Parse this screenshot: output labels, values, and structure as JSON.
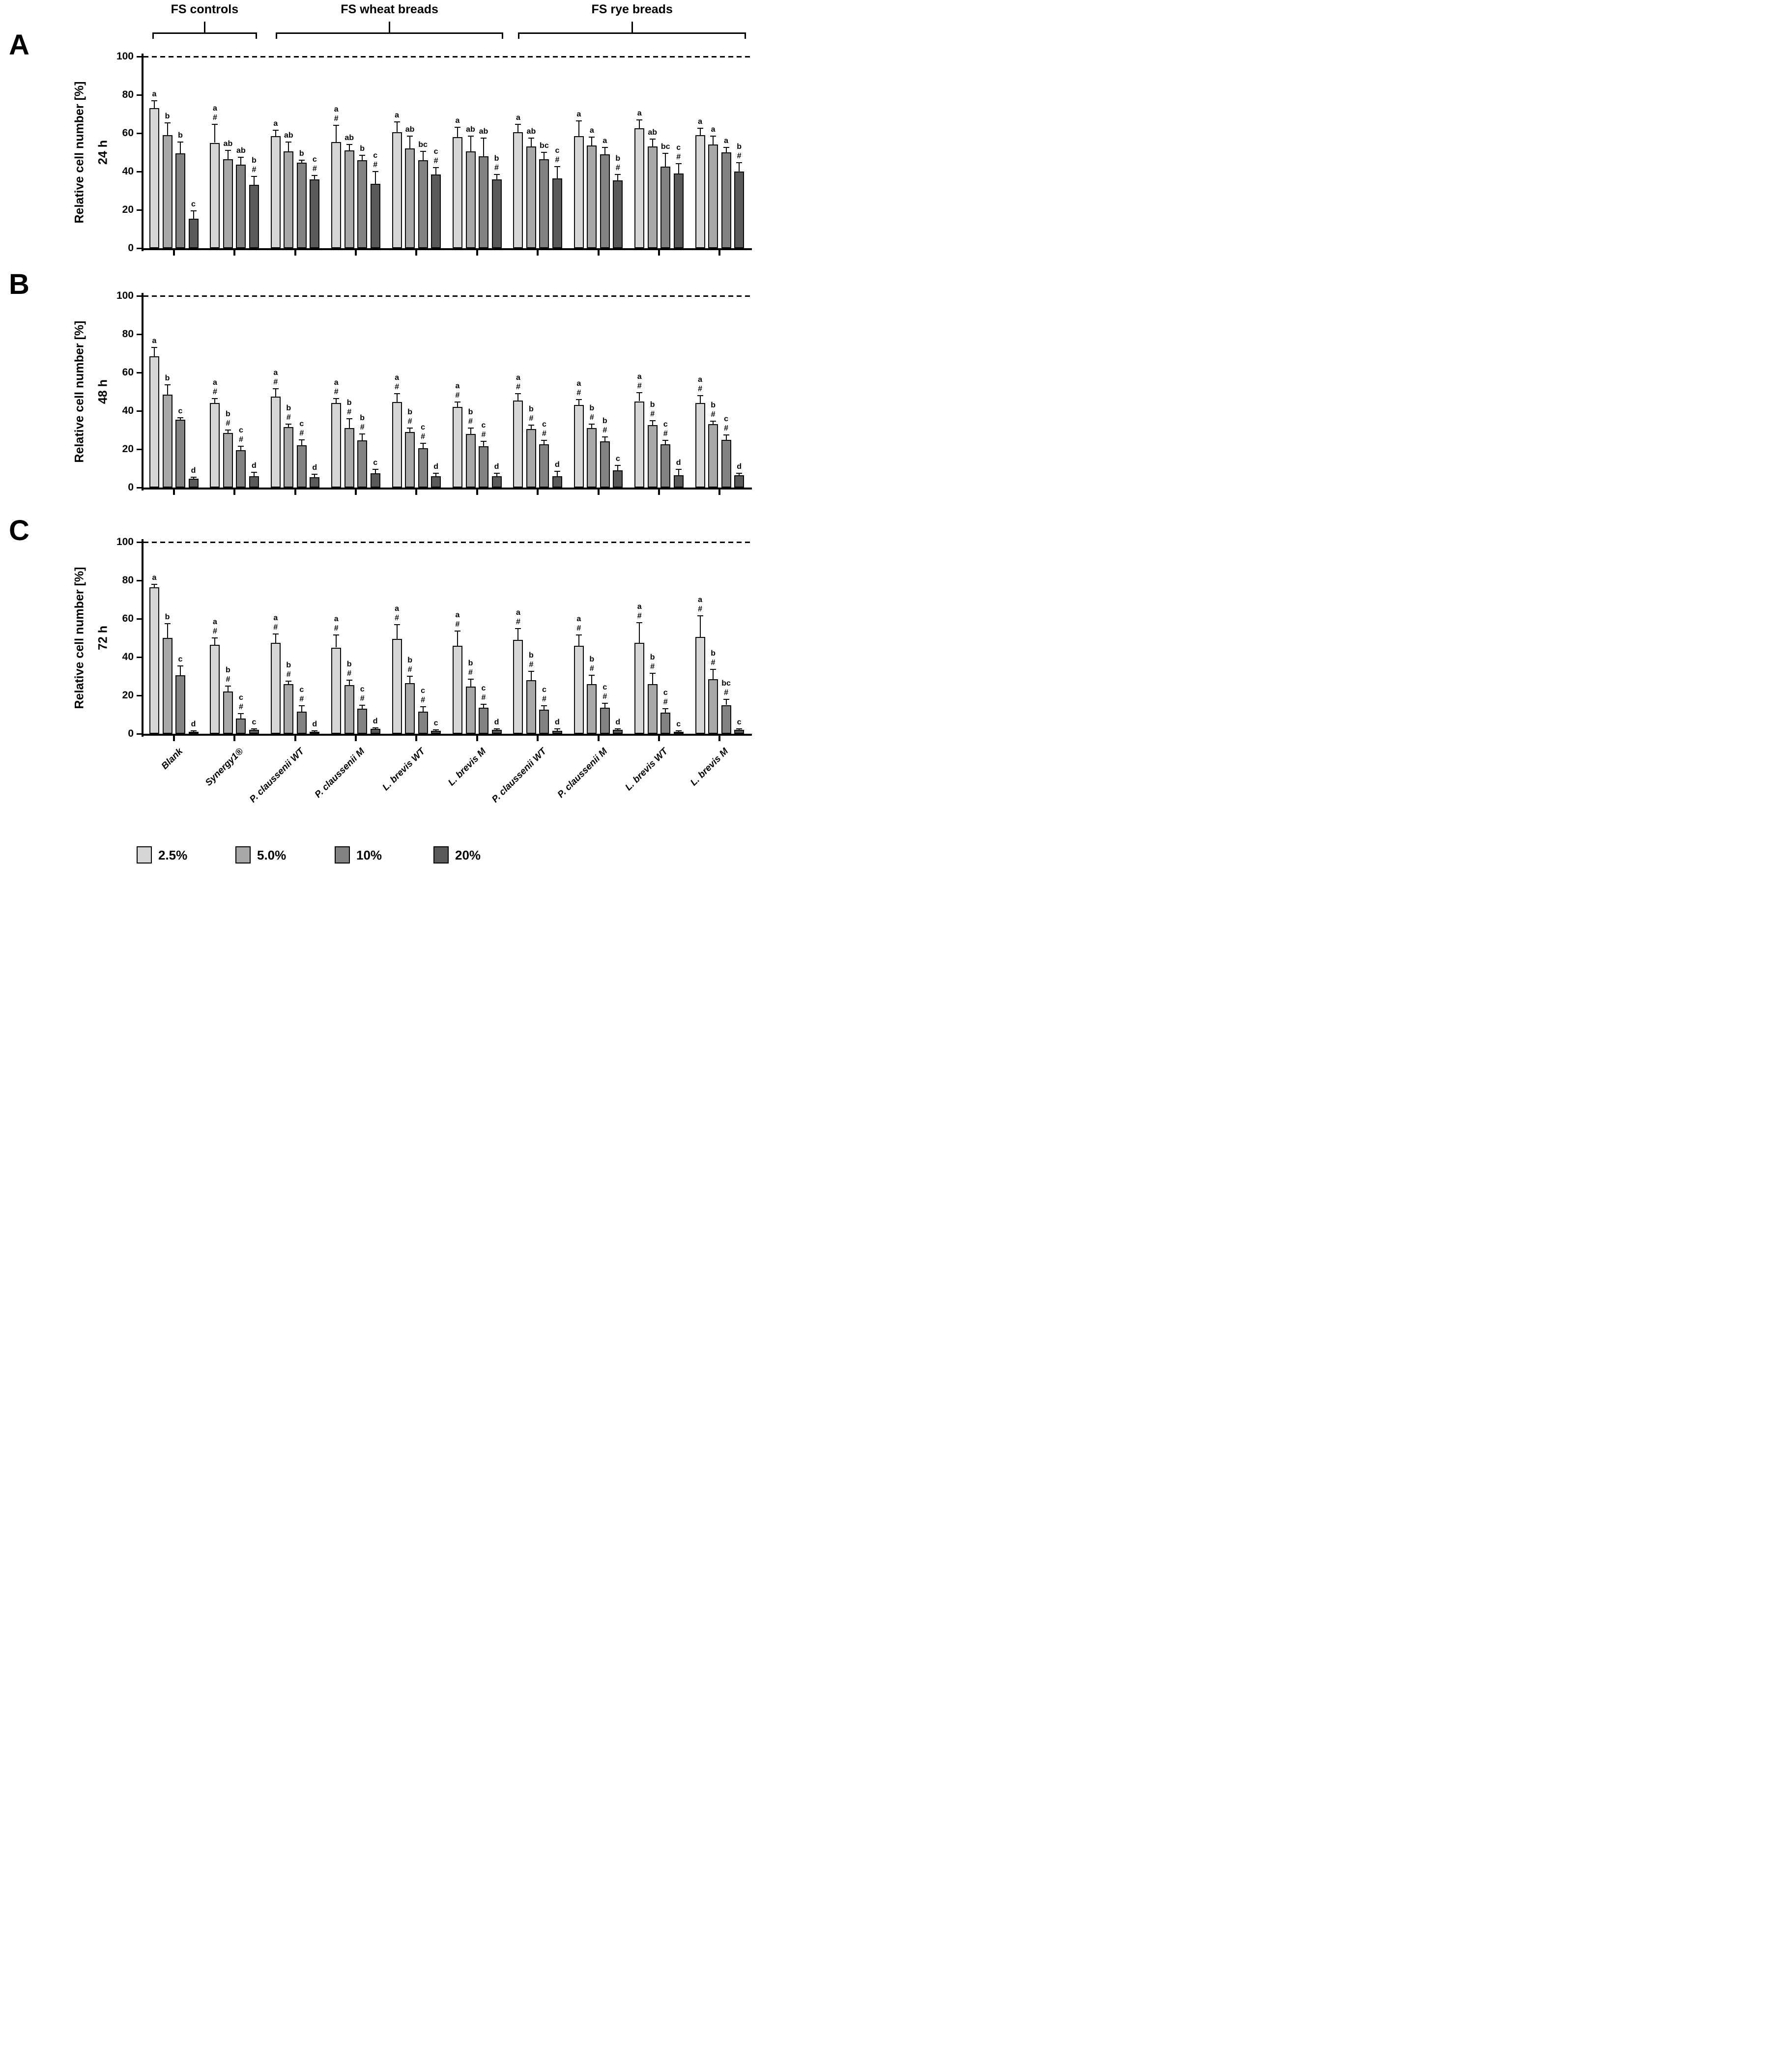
{
  "headers": [
    {
      "label": "FS controls",
      "from": 0,
      "to": 1
    },
    {
      "label": "FS wheat breads",
      "from": 2,
      "to": 5
    },
    {
      "label": "FS rye breads",
      "from": 6,
      "to": 9
    }
  ],
  "categories": [
    "Blank",
    "Synergy1®",
    "P. claussenii WT",
    "P. claussenii M",
    "L. brevis WT",
    "L. brevis M",
    "P. claussenii WT",
    "P. claussenii M",
    "L. brevis WT",
    "L. brevis M"
  ],
  "doses": [
    {
      "label": "2.5%",
      "color": "#d6d6d6"
    },
    {
      "label": "5.0%",
      "color": "#a7a7aa"
    },
    {
      "label": "10%",
      "color": "#828282"
    },
    {
      "label": "20%",
      "color": "#5a5a5a"
    }
  ],
  "chart_data": [
    {
      "type": "bar",
      "panel_letter": "A",
      "time_label": "24 h",
      "ylabel": "Relative cell number [%]",
      "ylim": [
        0,
        100
      ],
      "yticks": [
        0,
        20,
        40,
        60,
        80,
        100
      ],
      "reference_line": 100,
      "legend_position": "bottom",
      "grid": false,
      "categories": [
        "Blank",
        "Synergy1®",
        "P. claussenii WT",
        "P. claussenii M",
        "L. brevis WT",
        "L. brevis M",
        "P. claussenii WT",
        "P. claussenii M",
        "L. brevis WT",
        "L. brevis M"
      ],
      "series": [
        {
          "name": "2.5%",
          "values": [
            73,
            55,
            58.5,
            55.5,
            60.5,
            58,
            60.5,
            58.5,
            62.5,
            59
          ],
          "errors": [
            4,
            9.5,
            3,
            8.5,
            5.5,
            5,
            4,
            8,
            4.5,
            3.5
          ],
          "sig": [
            "a",
            "a#",
            "a",
            "a#",
            "a",
            "a",
            "a",
            "a",
            "a",
            "a"
          ]
        },
        {
          "name": "5.0%",
          "values": [
            59,
            46.5,
            50.5,
            51,
            52,
            50.5,
            53,
            53.5,
            53,
            54
          ],
          "errors": [
            6.5,
            4.5,
            5,
            3,
            6.5,
            8,
            4.5,
            4.5,
            4,
            4.5
          ],
          "sig": [
            "b",
            "ab",
            "ab",
            "ab",
            "ab",
            "ab",
            "ab",
            "a",
            "ab",
            "a"
          ]
        },
        {
          "name": "10%",
          "values": [
            49.5,
            43.5,
            44.5,
            46,
            46,
            48,
            46.5,
            49,
            42.5,
            50
          ],
          "errors": [
            6,
            4,
            1.5,
            2.5,
            4.5,
            9.5,
            3.5,
            3.5,
            7,
            2.5
          ],
          "sig": [
            "b",
            "ab",
            "b",
            "b",
            "bc",
            "ab",
            "bc",
            "a",
            "bc",
            "a"
          ]
        },
        {
          "name": "20%",
          "values": [
            15.5,
            33,
            36,
            33.5,
            38.5,
            36,
            36.5,
            35.5,
            39,
            40
          ],
          "errors": [
            4,
            4.5,
            2,
            6.5,
            3.5,
            2.5,
            6,
            3,
            5,
            4.5
          ],
          "sig": [
            "c",
            "b#",
            "c#",
            "c#",
            "c#",
            "b#",
            "c#",
            "b#",
            "c#",
            "b#"
          ]
        }
      ]
    },
    {
      "type": "bar",
      "panel_letter": "B",
      "time_label": "48 h",
      "ylabel": "Relative cell number [%]",
      "ylim": [
        0,
        100
      ],
      "yticks": [
        0,
        20,
        40,
        60,
        80,
        100
      ],
      "reference_line": 100,
      "legend_position": "bottom",
      "grid": false,
      "categories": [
        "Blank",
        "Synergy1®",
        "P. claussenii WT",
        "P. claussenii M",
        "L. brevis WT",
        "L. brevis M",
        "P. claussenii WT",
        "P. claussenii M",
        "L. brevis WT",
        "L. brevis M"
      ],
      "series": [
        {
          "name": "2.5%",
          "values": [
            68.5,
            44,
            47.5,
            44,
            44.5,
            42,
            45.5,
            43,
            45,
            44
          ],
          "errors": [
            4.5,
            2.5,
            4,
            2.5,
            4.5,
            2.5,
            3.5,
            3,
            4.5,
            4
          ],
          "sig": [
            "a",
            "a#",
            "a#",
            "a#",
            "a#",
            "a#",
            "a#",
            "a#",
            "a#",
            "a#"
          ]
        },
        {
          "name": "5.0%",
          "values": [
            48.5,
            28.5,
            31.5,
            31,
            29,
            28,
            30.5,
            31,
            32.5,
            33
          ],
          "errors": [
            5,
            1.5,
            1.5,
            5,
            2,
            3,
            2,
            2,
            2.5,
            1.5
          ],
          "sig": [
            "b",
            "b#",
            "b#",
            "b#",
            "b#",
            "b#",
            "b#",
            "b#",
            "b#",
            "b#"
          ]
        },
        {
          "name": "10%",
          "values": [
            35.5,
            19.5,
            22,
            24.5,
            20.5,
            21.5,
            22.5,
            24,
            22.5,
            25
          ],
          "errors": [
            1,
            2,
            3,
            3.5,
            2.5,
            2.5,
            2,
            2.5,
            2,
            2.5
          ],
          "sig": [
            "c",
            "c#",
            "c#",
            "b#",
            "c#",
            "c#",
            "c#",
            "b#",
            "c#",
            "c#"
          ]
        },
        {
          "name": "20%",
          "values": [
            4.5,
            6,
            5.5,
            7.5,
            6,
            6,
            6,
            9,
            6.5,
            6.5
          ],
          "errors": [
            1,
            2,
            1.5,
            2,
            1.5,
            1.5,
            2.5,
            2.5,
            3,
            1
          ],
          "sig": [
            "d",
            "d",
            "d",
            "c",
            "d",
            "d",
            "d",
            "c",
            "d",
            "d"
          ]
        }
      ]
    },
    {
      "type": "bar",
      "panel_letter": "C",
      "time_label": "72 h",
      "ylabel": "Relative cell number [%]",
      "ylim": [
        0,
        100
      ],
      "yticks": [
        0,
        20,
        40,
        60,
        80,
        100
      ],
      "reference_line": 100,
      "legend_position": "bottom",
      "grid": false,
      "categories": [
        "Blank",
        "Synergy1®",
        "P. claussenii WT",
        "P. claussenii M",
        "L. brevis WT",
        "L. brevis M",
        "P. claussenii WT",
        "P. claussenii M",
        "L. brevis WT",
        "L. brevis M"
      ],
      "series": [
        {
          "name": "2.5%",
          "values": [
            76.5,
            46.5,
            47.5,
            45,
            49.5,
            46,
            49,
            46,
            47.5,
            50.5
          ],
          "errors": [
            1.5,
            3.5,
            4.5,
            6.5,
            7.5,
            7.5,
            6,
            5.5,
            10.5,
            11
          ],
          "sig": [
            "a",
            "a#",
            "a#",
            "a#",
            "a#",
            "a#",
            "a#",
            "a#",
            "a#",
            "a#"
          ]
        },
        {
          "name": "5.0%",
          "values": [
            50,
            22,
            26,
            25.5,
            26.5,
            24.5,
            28,
            26,
            26,
            28.5
          ],
          "errors": [
            7.5,
            3,
            1.5,
            2.5,
            3.5,
            4,
            4.5,
            4.5,
            5.5,
            5
          ],
          "sig": [
            "b",
            "b#",
            "b#",
            "b#",
            "b#",
            "b#",
            "b#",
            "b#",
            "b#",
            "b#"
          ]
        },
        {
          "name": "10%",
          "values": [
            30.5,
            8,
            11.5,
            13,
            11.5,
            13.5,
            12.5,
            13.5,
            11,
            15
          ],
          "errors": [
            5,
            2.5,
            3,
            2,
            2.5,
            2,
            2,
            2.5,
            2,
            3
          ],
          "sig": [
            "c",
            "c#",
            "c#",
            "c#",
            "c#",
            "c#",
            "c#",
            "c#",
            "c#",
            "bc#"
          ]
        },
        {
          "name": "20%",
          "values": [
            1,
            2,
            1,
            2.5,
            1.5,
            2,
            1.5,
            2,
            1,
            2
          ],
          "errors": [
            0.5,
            0.5,
            0.5,
            0.5,
            0.5,
            0.5,
            1,
            0.5,
            0.5,
            0.5
          ],
          "sig": [
            "d",
            "c",
            "d",
            "d",
            "c",
            "d",
            "d",
            "d",
            "c",
            "c"
          ]
        }
      ]
    }
  ]
}
